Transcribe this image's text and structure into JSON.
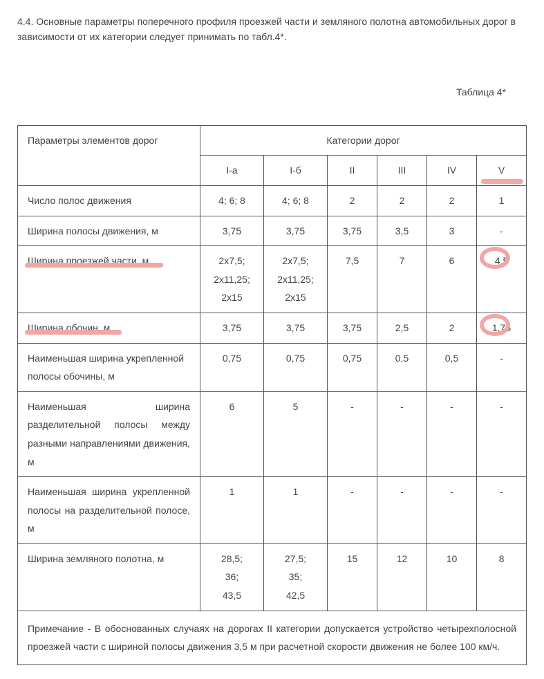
{
  "intro": "4.4. Основные параметры поперечного профиля проезжей части и земляного полотна автомобильных дорог в зависимости от их категории следует принимать по табл.4*.",
  "table_label": "Таблица 4*",
  "headers": {
    "params": "Параметры элементов дорог",
    "categories": "Категории дорог",
    "c1": "I-а",
    "c2": "I-б",
    "c3": "II",
    "c4": "III",
    "c5": "IV",
    "c6": "V"
  },
  "rows": [
    {
      "param": "Число полос движения",
      "v": [
        "4; 6; 8",
        "4; 6; 8",
        "2",
        "2",
        "2",
        "1"
      ]
    },
    {
      "param": "Ширина полосы движения, м",
      "v": [
        "3,75",
        "3,75",
        "3,75",
        "3,5",
        "3",
        "-"
      ]
    },
    {
      "param": "Ширина проезжей части, м",
      "v": [
        "2х7,5; 2х11,25; 2х15",
        "2х7,5; 2х11,25; 2х15",
        "7,5",
        "7",
        "6",
        "4,5"
      ],
      "mark_param": true,
      "circle_last": true
    },
    {
      "param": "Ширина обочин, м",
      "v": [
        "3,75",
        "3,75",
        "3,75",
        "2,5",
        "2",
        "1,75"
      ],
      "mark_param": true,
      "circle_last": true
    },
    {
      "param": "Наименьшая ширина укрепленной полосы обочины, м",
      "v": [
        "0,75",
        "0,75",
        "0,75",
        "0,5",
        "0,5",
        "-"
      ]
    },
    {
      "param": "Наименьшая ширина разделительной полосы между разными направлениями движения, м",
      "v": [
        "6",
        "5",
        "-",
        "-",
        "-",
        "-"
      ],
      "justify": true
    },
    {
      "param": "Наименьшая ширина укрепленной полосы на разделительной полосе, м",
      "v": [
        "1",
        "1",
        "-",
        "-",
        "-",
        "-"
      ],
      "justify": true
    },
    {
      "param": "Ширина земляного полотна, м",
      "v": [
        "28,5; 36; 43,5",
        "27,5; 35; 42,5",
        "15",
        "12",
        "10",
        "8"
      ]
    }
  ],
  "note": "Примечание - В обоснованных случаях на дорогах II категории допускается устройство четырехполосной проезжей части с шириной полосы движения 3,5 м при расчетной скорости движения не более 100 км/ч.",
  "highlight_color": "#f2a6a6"
}
